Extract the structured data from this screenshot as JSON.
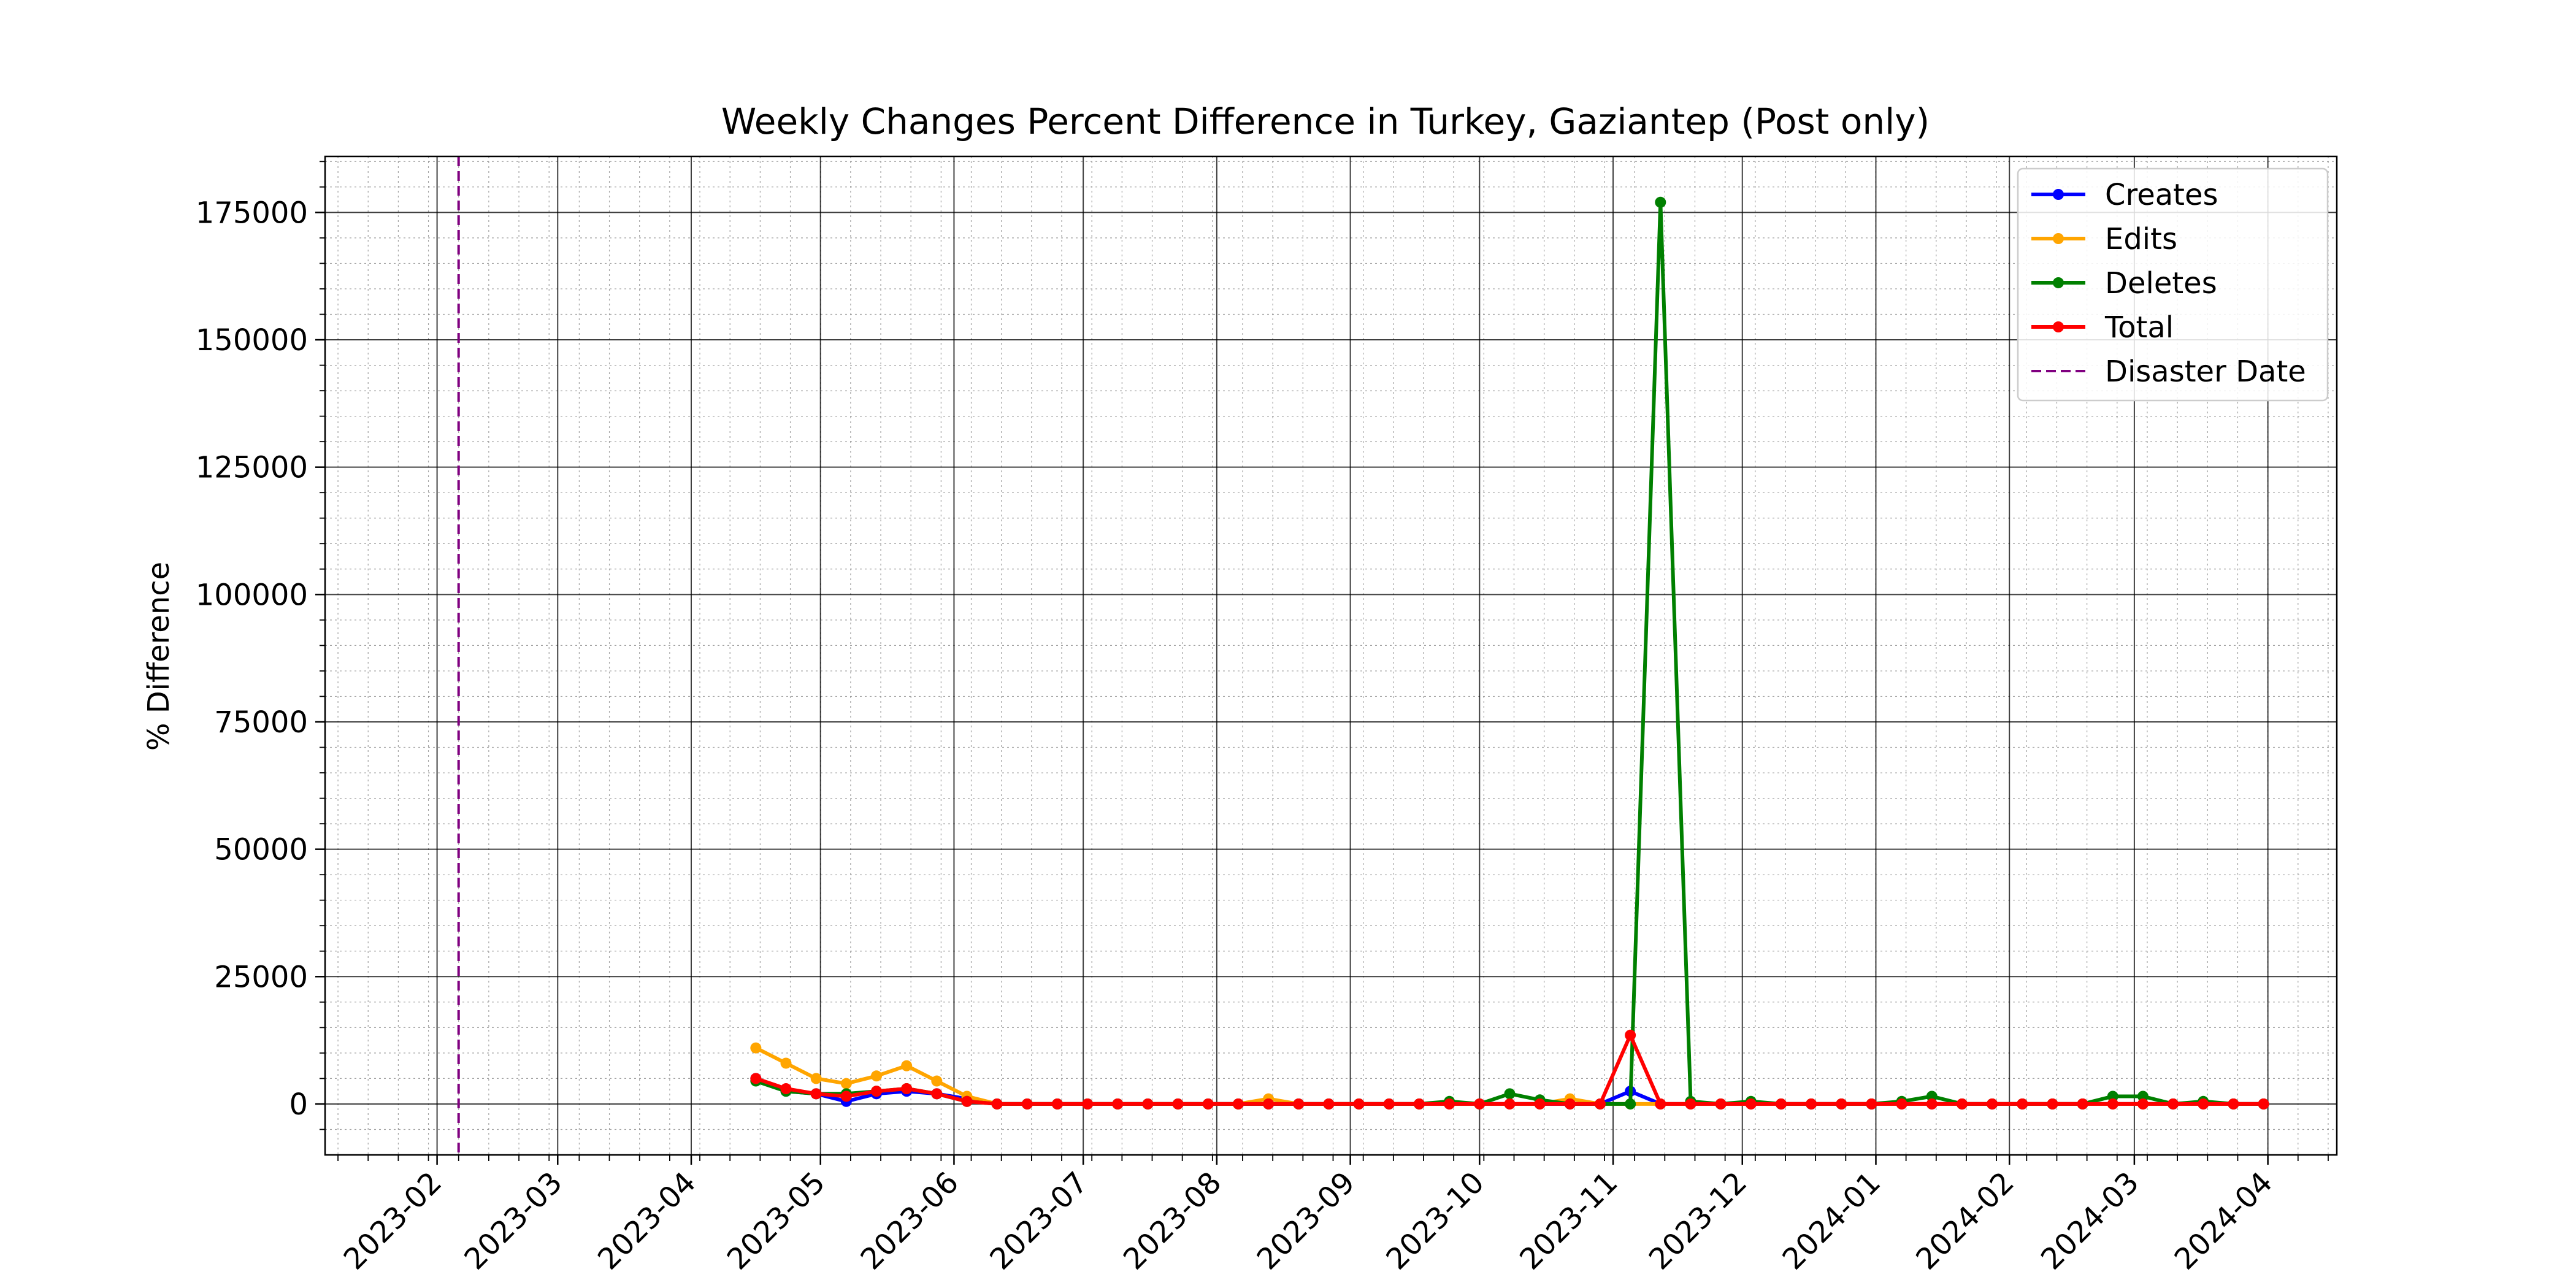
{
  "chart_data": {
    "type": "line",
    "title": "Weekly Changes Percent Difference in Turkey, Gaziantep (Post only)",
    "xlabel": "",
    "ylabel": "% Difference",
    "x_axis_type": "date",
    "xlim": [
      "2023-01-06",
      "2024-04-17"
    ],
    "ylim": [
      -10000,
      186000
    ],
    "x_tick_labels": [
      "2023-02",
      "2023-03",
      "2023-04",
      "2023-05",
      "2023-06",
      "2023-07",
      "2023-08",
      "2023-09",
      "2023-10",
      "2023-11",
      "2023-12",
      "2024-01",
      "2024-02",
      "2024-03",
      "2024-04"
    ],
    "x_ticks": [
      "2023-02-01",
      "2023-03-01",
      "2023-04-01",
      "2023-05-01",
      "2023-06-01",
      "2023-07-01",
      "2023-08-01",
      "2023-09-01",
      "2023-10-01",
      "2023-11-01",
      "2023-12-01",
      "2024-01-01",
      "2024-02-01",
      "2024-03-01",
      "2024-04-01"
    ],
    "y_ticks": [
      0,
      25000,
      50000,
      75000,
      100000,
      125000,
      150000,
      175000
    ],
    "grid": true,
    "minor_grid": true,
    "legend_position": "top-right",
    "disaster_date": "2023-02-06",
    "disaster_label": "Disaster Date",
    "disaster_color": "#800080",
    "x": [
      "2023-04-16",
      "2023-04-23",
      "2023-04-30",
      "2023-05-07",
      "2023-05-14",
      "2023-05-21",
      "2023-05-28",
      "2023-06-04",
      "2023-06-11",
      "2023-06-18",
      "2023-06-25",
      "2023-07-02",
      "2023-07-09",
      "2023-07-16",
      "2023-07-23",
      "2023-07-30",
      "2023-08-06",
      "2023-08-13",
      "2023-08-20",
      "2023-08-27",
      "2023-09-03",
      "2023-09-10",
      "2023-09-17",
      "2023-09-24",
      "2023-10-01",
      "2023-10-08",
      "2023-10-15",
      "2023-10-22",
      "2023-10-29",
      "2023-11-05",
      "2023-11-12",
      "2023-11-19",
      "2023-11-26",
      "2023-12-03",
      "2023-12-10",
      "2023-12-17",
      "2023-12-24",
      "2023-12-31",
      "2024-01-07",
      "2024-01-14",
      "2024-01-21",
      "2024-01-28",
      "2024-02-04",
      "2024-02-11",
      "2024-02-18",
      "2024-02-25",
      "2024-03-03",
      "2024-03-10",
      "2024-03-17",
      "2024-03-24",
      "2024-03-31"
    ],
    "series": [
      {
        "name": "Creates",
        "color": "#0000ff",
        "values": [
          5000,
          2500,
          2000,
          500,
          2000,
          2500,
          2000,
          1000,
          0,
          0,
          0,
          0,
          0,
          0,
          0,
          0,
          0,
          0,
          0,
          0,
          0,
          0,
          0,
          0,
          0,
          0,
          0,
          0,
          0,
          2500,
          0,
          0,
          0,
          0,
          0,
          0,
          0,
          0,
          0,
          0,
          0,
          0,
          0,
          0,
          0,
          0,
          0,
          0,
          0,
          0,
          0
        ]
      },
      {
        "name": "Edits",
        "color": "#ffa500",
        "values": [
          11000,
          8000,
          5000,
          4000,
          5500,
          7500,
          4500,
          1500,
          0,
          0,
          0,
          0,
          0,
          0,
          0,
          0,
          0,
          1000,
          0,
          0,
          0,
          0,
          0,
          0,
          0,
          0,
          0,
          1000,
          0,
          0,
          0,
          0,
          0,
          0,
          0,
          0,
          0,
          0,
          0,
          0,
          0,
          0,
          0,
          0,
          0,
          0,
          0,
          0,
          0,
          0,
          0
        ]
      },
      {
        "name": "Deletes",
        "color": "#008000",
        "values": [
          4500,
          2500,
          2000,
          2000,
          2500,
          3000,
          2000,
          500,
          0,
          0,
          0,
          0,
          0,
          0,
          0,
          0,
          0,
          0,
          0,
          0,
          0,
          0,
          0,
          500,
          0,
          2000,
          800,
          0,
          0,
          0,
          177000,
          500,
          0,
          500,
          0,
          0,
          0,
          0,
          500,
          1500,
          0,
          0,
          0,
          0,
          0,
          1500,
          1500,
          0,
          500,
          0,
          0
        ]
      },
      {
        "name": "Total",
        "color": "#ff0000",
        "values": [
          5000,
          3000,
          2000,
          1500,
          2500,
          3000,
          2000,
          500,
          0,
          0,
          0,
          0,
          0,
          0,
          0,
          0,
          0,
          0,
          0,
          0,
          0,
          0,
          0,
          0,
          0,
          0,
          0,
          0,
          0,
          13500,
          0,
          0,
          0,
          0,
          0,
          0,
          0,
          0,
          0,
          0,
          0,
          0,
          0,
          0,
          0,
          0,
          0,
          0,
          0,
          0,
          0
        ]
      }
    ]
  }
}
